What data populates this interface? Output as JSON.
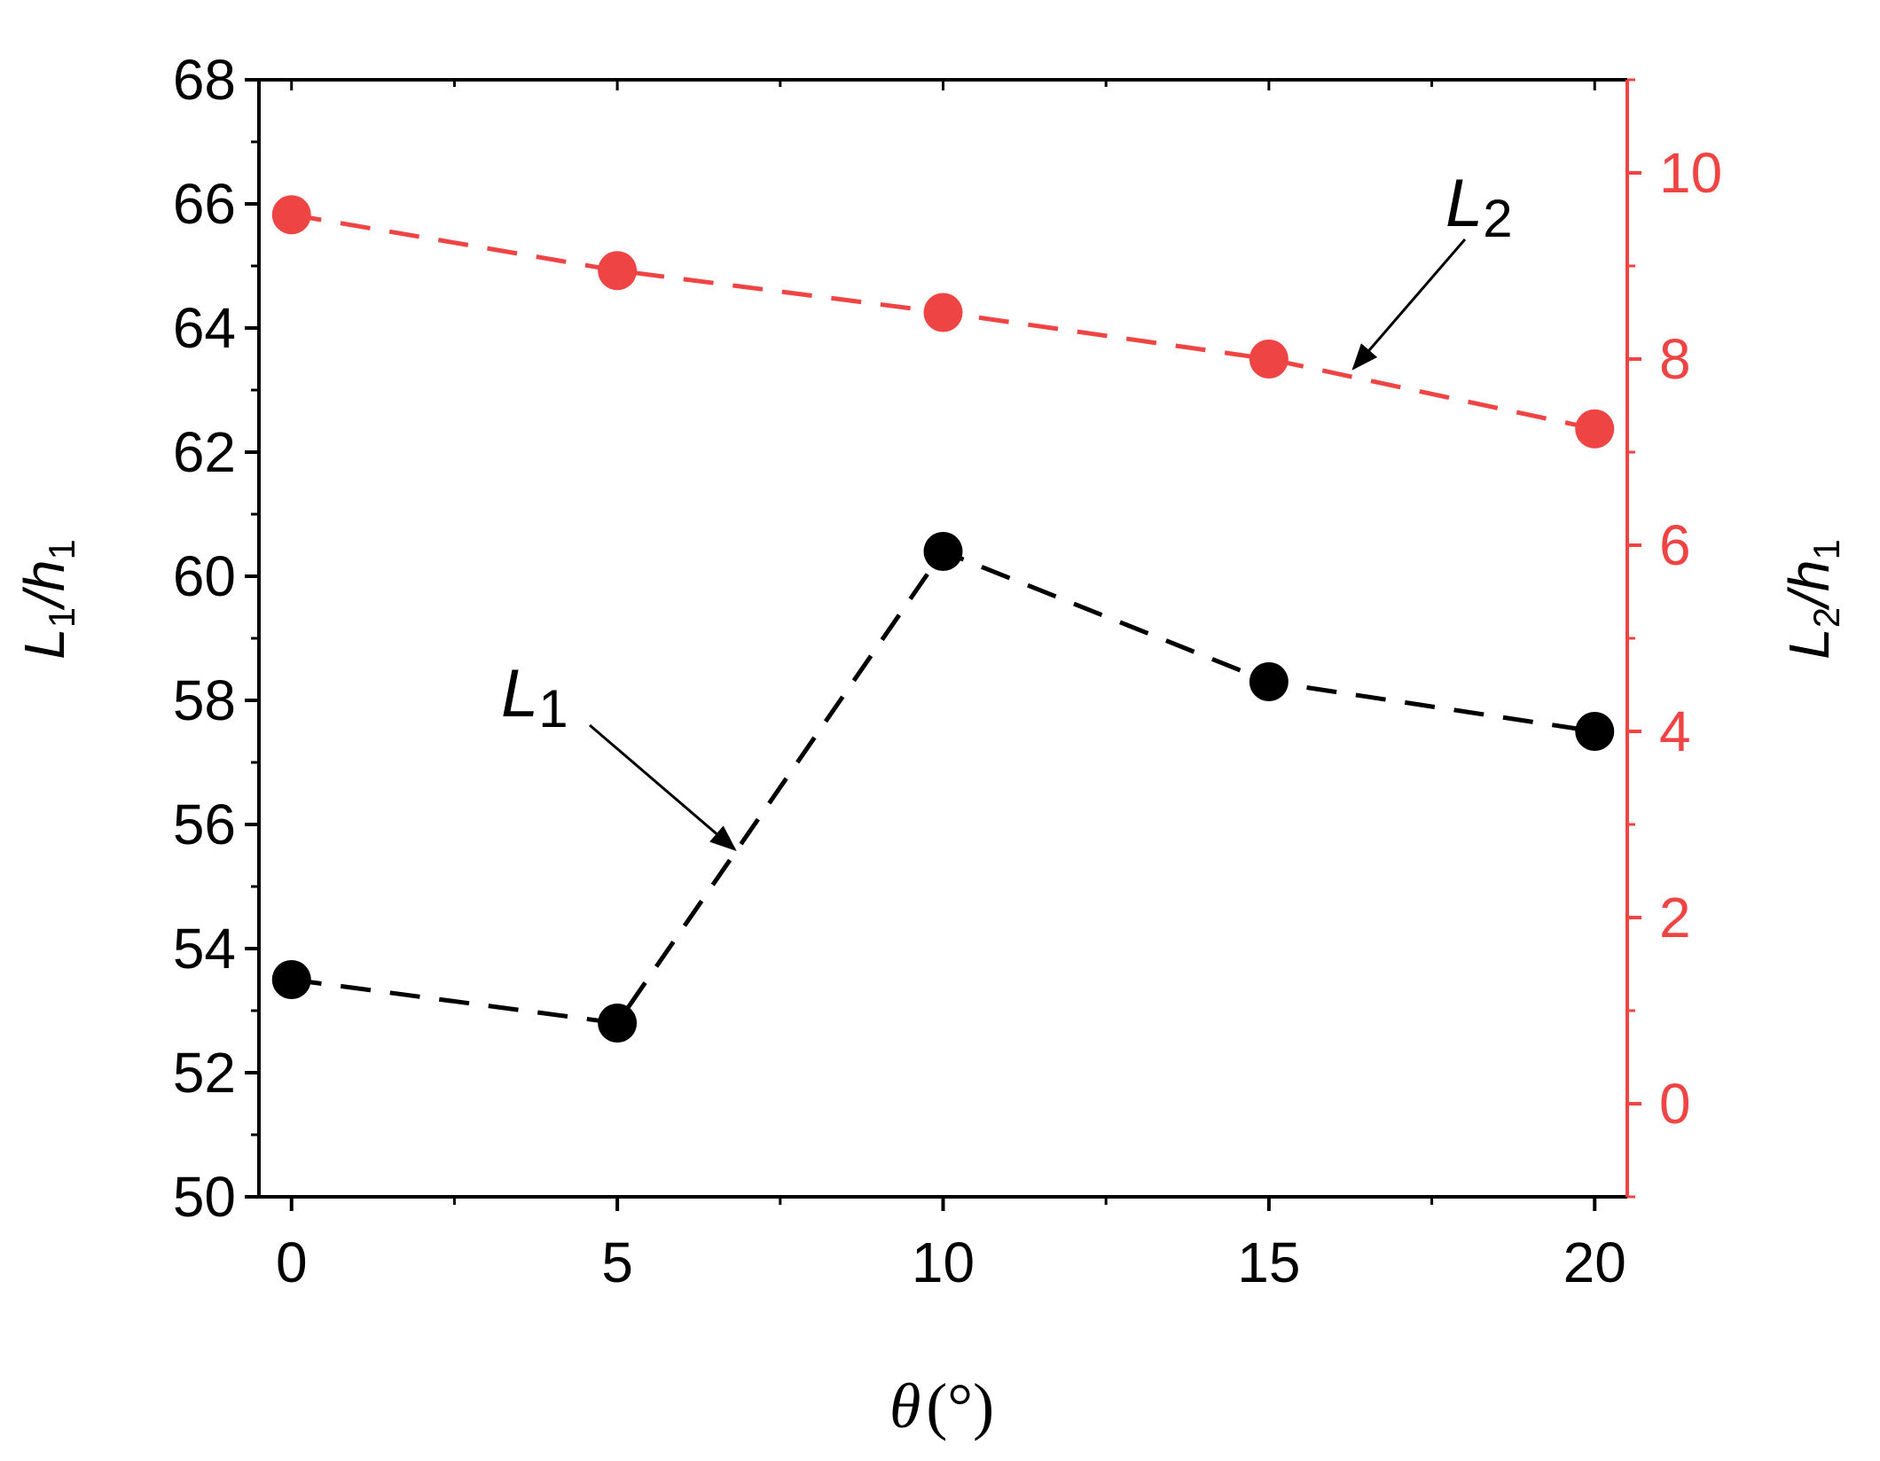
{
  "chart_data": {
    "type": "line",
    "x": [
      0,
      5,
      10,
      15,
      20
    ],
    "xlim": [
      -0.5,
      20.5
    ],
    "x_ticks": [
      "0",
      "5",
      "10",
      "15",
      "20"
    ],
    "xlabel": {
      "symbol": "θ",
      "unit": "(°)"
    },
    "left_axis": {
      "label": {
        "main": "L",
        "sub1": "1",
        "mid": "/h",
        "sub2": "1"
      },
      "ylim": [
        50,
        68
      ],
      "ticks": [
        "50",
        "52",
        "54",
        "56",
        "58",
        "60",
        "62",
        "64",
        "66",
        "68"
      ],
      "color": "#000000"
    },
    "right_axis": {
      "label": {
        "main": "L",
        "sub1": "2",
        "mid": "/h",
        "sub2": "1"
      },
      "ylim": [
        -1,
        11
      ],
      "ticks": [
        "0",
        "2",
        "4",
        "6",
        "8",
        "10"
      ],
      "color": "#ee4444"
    },
    "series": [
      {
        "axis": "left",
        "color": "#000000",
        "line_style": "dashed",
        "values": [
          53.5,
          52.8,
          60.4,
          58.3,
          57.5
        ],
        "annotation": {
          "main": "L",
          "sub": "1",
          "arrow_to": [
            6.8,
            55.6
          ]
        }
      },
      {
        "axis": "right",
        "color": "#ee4444",
        "line_style": "dashed",
        "values": [
          9.55,
          8.95,
          8.5,
          8.0,
          7.25
        ],
        "annotation": {
          "main": "L",
          "sub": "2",
          "arrow_to": [
            16.3,
            7.9
          ]
        }
      }
    ]
  }
}
